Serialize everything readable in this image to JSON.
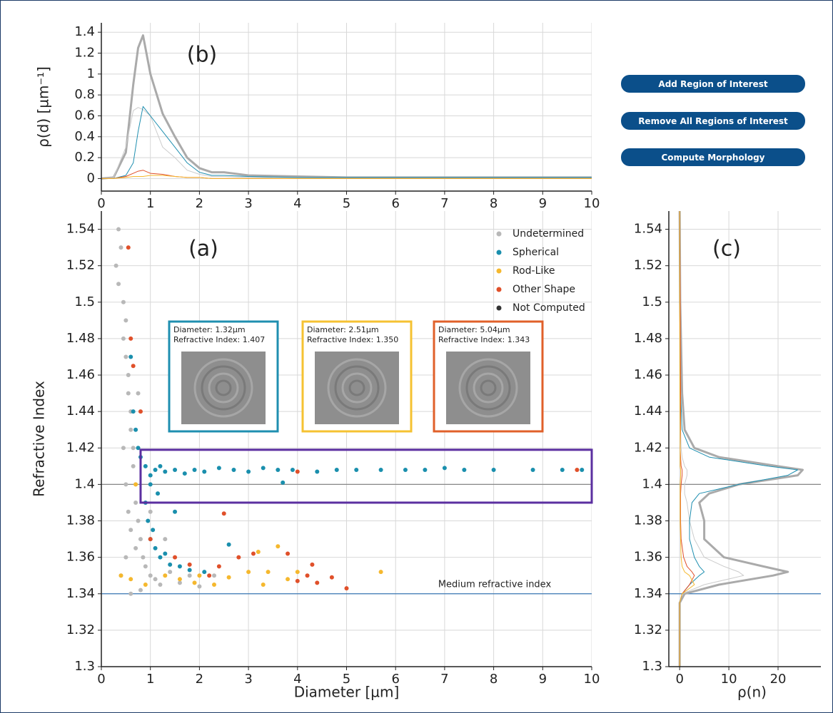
{
  "buttons": [
    "Add Region of Interest",
    "Remove All Regions of Interest",
    "Compute Morphology"
  ],
  "chart_data": [
    {
      "type": "line",
      "annotation": "(b)",
      "y_label": "ρ(d) [µm⁻¹]",
      "xlim": [
        0,
        10
      ],
      "xticks": [
        0,
        1,
        2,
        3,
        4,
        5,
        6,
        7,
        8,
        9,
        10
      ],
      "ylim": [
        -0.12,
        1.49
      ],
      "yticks": [
        0,
        0.2,
        0.4,
        0.6,
        0.8,
        1,
        1.2,
        1.4
      ],
      "grid": true,
      "x": [
        0,
        0.25,
        0.5,
        0.65,
        0.75,
        0.85,
        1,
        1.25,
        1.5,
        1.75,
        2,
        2.25,
        2.5,
        3,
        4,
        5,
        6,
        7,
        8,
        9,
        10
      ],
      "series": [
        {
          "color": "#aaaaaa",
          "width": 3,
          "values": [
            0,
            0.01,
            0.25,
            0.9,
            1.25,
            1.37,
            1.0,
            0.62,
            0.4,
            0.2,
            0.1,
            0.06,
            0.06,
            0.03,
            0.02,
            0.01,
            0.01,
            0.01,
            0.01,
            0.01,
            0.01
          ]
        },
        {
          "color": "#cccccc",
          "width": 1,
          "values": [
            0,
            0.01,
            0.3,
            0.65,
            0.68,
            0.66,
            0.6,
            0.3,
            0.2,
            0.08,
            0.04,
            0.02,
            0.02,
            0.01,
            0.01,
            0,
            0,
            0,
            0,
            0,
            0
          ]
        },
        {
          "color": "#1f8fb0",
          "width": 1,
          "values": [
            0,
            0,
            0.03,
            0.15,
            0.45,
            0.69,
            0.6,
            0.45,
            0.3,
            0.15,
            0.06,
            0.03,
            0.03,
            0.02,
            0.01,
            0.01,
            0.01,
            0.01,
            0.01,
            0.01,
            0.01
          ]
        },
        {
          "color": "#e0502a",
          "width": 1,
          "values": [
            0,
            0,
            0.02,
            0.05,
            0.07,
            0.08,
            0.05,
            0.04,
            0.02,
            0.01,
            0.01,
            0,
            0,
            0,
            0,
            0,
            0,
            0,
            0,
            0,
            0
          ]
        },
        {
          "color": "#f5b82e",
          "width": 1,
          "values": [
            0,
            0,
            0.01,
            0.02,
            0.02,
            0.02,
            0.03,
            0.03,
            0.02,
            0.01,
            0.01,
            0,
            0,
            0,
            0,
            0,
            0,
            0,
            0,
            0,
            0
          ]
        }
      ]
    },
    {
      "type": "scatter",
      "annotation": "(a)",
      "x_label": "Diameter [µm]",
      "y_label": "Refractive Index",
      "xlim": [
        0,
        10
      ],
      "xticks": [
        0,
        1,
        2,
        3,
        4,
        5,
        6,
        7,
        8,
        9,
        10
      ],
      "ylim": [
        1.3,
        1.55
      ],
      "yticks": [
        1.3,
        1.32,
        1.34,
        1.36,
        1.38,
        1.4,
        1.42,
        1.44,
        1.46,
        1.48,
        1.5,
        1.52,
        1.54
      ],
      "grid": true,
      "legend": "upper right",
      "hlines": [
        {
          "value": 1.34,
          "color": "#3a78b5",
          "label": "Medium refractive index"
        },
        {
          "value": 1.4,
          "color": "#888888"
        }
      ],
      "roi": {
        "xlim": [
          0.8,
          10
        ],
        "ylim": [
          1.39,
          1.419
        ],
        "color": "#5b2fa0"
      },
      "insets": [
        {
          "color": "#1f8fb0",
          "lines": [
            "Diameter: 1.32µm",
            "Refractive Index: 1.407"
          ]
        },
        {
          "color": "#f5c232",
          "lines": [
            "Diameter: 2.51µm",
            "Refractive Index: 1.350"
          ]
        },
        {
          "color": "#e0602a",
          "lines": [
            "Diameter: 5.04µm",
            "Refractive Index: 1.343"
          ]
        }
      ],
      "series": [
        {
          "name": "Undetermined",
          "color": "#b8b8b8",
          "x": [
            0.3,
            0.35,
            0.4,
            0.45,
            0.5,
            0.5,
            0.55,
            0.55,
            0.6,
            0.6,
            0.65,
            0.65,
            0.7,
            0.7,
            0.75,
            0.8,
            0.85,
            0.9,
            1.0,
            1.1,
            1.2,
            0.5,
            0.4,
            0.6,
            0.8,
            1.4,
            1.6,
            1.8,
            2.0,
            2.3,
            0.45,
            0.5,
            0.55,
            0.6,
            0.7,
            0.75,
            0.35,
            0.45,
            1.3,
            1.0
          ],
          "y": [
            1.52,
            1.54,
            1.53,
            1.5,
            1.49,
            1.47,
            1.46,
            1.45,
            1.44,
            1.43,
            1.42,
            1.41,
            1.4,
            1.39,
            1.38,
            1.37,
            1.36,
            1.355,
            1.35,
            1.348,
            1.345,
            1.36,
            1.35,
            1.34,
            1.342,
            1.352,
            1.346,
            1.35,
            1.344,
            1.35,
            1.42,
            1.4,
            1.385,
            1.375,
            1.365,
            1.45,
            1.51,
            1.48,
            1.37,
            1.385
          ]
        },
        {
          "name": "Spherical",
          "color": "#1a8fad",
          "x": [
            0.6,
            0.65,
            0.7,
            0.75,
            0.9,
            1.0,
            1.1,
            1.2,
            1.3,
            1.5,
            1.7,
            1.9,
            2.1,
            2.4,
            2.7,
            3.0,
            3.3,
            3.6,
            3.9,
            4.4,
            4.8,
            5.2,
            5.7,
            6.2,
            6.6,
            7.0,
            7.4,
            8.0,
            8.8,
            9.4,
            9.8,
            0.9,
            0.95,
            1.0,
            1.1,
            1.2,
            1.4,
            1.6,
            1.8,
            2.1,
            1.05,
            1.3,
            2.6,
            1.5,
            3.7,
            0.8,
            1.0,
            1.15
          ],
          "y": [
            1.47,
            1.44,
            1.43,
            1.42,
            1.41,
            1.405,
            1.408,
            1.41,
            1.407,
            1.408,
            1.406,
            1.408,
            1.407,
            1.409,
            1.408,
            1.407,
            1.409,
            1.408,
            1.408,
            1.407,
            1.408,
            1.408,
            1.408,
            1.408,
            1.408,
            1.409,
            1.408,
            1.408,
            1.408,
            1.408,
            1.408,
            1.39,
            1.38,
            1.37,
            1.365,
            1.36,
            1.356,
            1.355,
            1.353,
            1.352,
            1.375,
            1.362,
            1.367,
            1.385,
            1.401,
            1.415,
            1.4,
            1.395
          ]
        },
        {
          "name": "Rod-Like",
          "color": "#f5b82e",
          "x": [
            0.4,
            0.6,
            0.9,
            1.3,
            1.6,
            1.9,
            2.3,
            2.6,
            3.0,
            3.2,
            3.4,
            3.6,
            3.3,
            3.8,
            4.0,
            5.7,
            2.0,
            0.7
          ],
          "y": [
            1.35,
            1.348,
            1.345,
            1.35,
            1.348,
            1.346,
            1.345,
            1.349,
            1.352,
            1.363,
            1.352,
            1.366,
            1.345,
            1.348,
            1.352,
            1.352,
            1.35,
            1.4
          ]
        },
        {
          "name": "Other Shape",
          "color": "#e0502a",
          "x": [
            0.55,
            0.6,
            0.65,
            0.8,
            1.0,
            1.5,
            1.8,
            2.2,
            2.5,
            2.4,
            2.8,
            3.1,
            3.8,
            4.0,
            4.2,
            4.3,
            4.4,
            4.7,
            5.0,
            9.7,
            4.0
          ],
          "y": [
            1.53,
            1.48,
            1.465,
            1.44,
            1.37,
            1.36,
            1.356,
            1.35,
            1.384,
            1.355,
            1.36,
            1.362,
            1.362,
            1.347,
            1.35,
            1.356,
            1.346,
            1.349,
            1.343,
            1.408,
            1.407
          ]
        },
        {
          "name": "Not Computed",
          "color": "#333333",
          "x": [],
          "y": []
        }
      ]
    },
    {
      "type": "line",
      "orientation": "horizontal",
      "annotation": "(c)",
      "x_label": "ρ(n)",
      "xlim": [
        -2.2,
        28.7
      ],
      "xticks": [
        0,
        10,
        20
      ],
      "ylim": [
        1.3,
        1.55
      ],
      "yticks": [
        1.3,
        1.32,
        1.34,
        1.36,
        1.38,
        1.4,
        1.42,
        1.44,
        1.46,
        1.48,
        1.5,
        1.52,
        1.54
      ],
      "grid": true,
      "hlines": [
        {
          "value": 1.34,
          "color": "#3a78b5"
        },
        {
          "value": 1.4,
          "color": "#888888"
        }
      ],
      "y": [
        1.3,
        1.335,
        1.34,
        1.345,
        1.35,
        1.352,
        1.355,
        1.36,
        1.37,
        1.38,
        1.39,
        1.395,
        1.4,
        1.405,
        1.408,
        1.41,
        1.415,
        1.42,
        1.43,
        1.45,
        1.5,
        1.55
      ],
      "series": [
        {
          "color": "#aaaaaa",
          "width": 3,
          "values": [
            0,
            0,
            1,
            8,
            19,
            22,
            17,
            9,
            5,
            5,
            4,
            6,
            12,
            24,
            25,
            20,
            8,
            3,
            1,
            0.5,
            0.1,
            0
          ]
        },
        {
          "color": "#cccccc",
          "width": 1,
          "values": [
            0,
            0,
            0.5,
            5,
            13,
            12,
            9,
            5,
            3,
            2,
            1.5,
            1,
            1,
            1.5,
            1.5,
            1,
            0.5,
            0.3,
            0.2,
            0.2,
            0.1,
            0
          ]
        },
        {
          "color": "#1f8fb0",
          "width": 1,
          "values": [
            0,
            0,
            0.5,
            2,
            4,
            5,
            4,
            3,
            2,
            2,
            2.5,
            4,
            12,
            22,
            24,
            18,
            6,
            2,
            0.5,
            0.2,
            0,
            0
          ]
        },
        {
          "color": "#e0502a",
          "width": 1,
          "values": [
            0,
            0,
            0.5,
            2,
            3,
            2.5,
            1.5,
            0.8,
            0.3,
            0.2,
            0.2,
            0.2,
            0.3,
            0.5,
            0.5,
            0.3,
            0.2,
            0.1,
            0.2,
            0.2,
            0.1,
            0
          ]
        },
        {
          "color": "#f5b82e",
          "width": 1,
          "values": [
            0,
            0,
            0.5,
            3,
            2,
            1,
            0.5,
            0.3,
            0.2,
            0.1,
            0.1,
            0.1,
            0.1,
            0.2,
            0.2,
            0.1,
            0.1,
            0.1,
            0.1,
            0.05,
            0,
            0
          ]
        }
      ]
    }
  ]
}
